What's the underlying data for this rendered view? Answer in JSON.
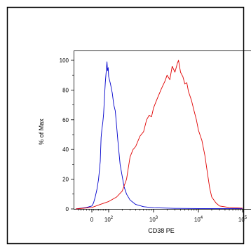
{
  "chart_data": {
    "type": "line",
    "title": "",
    "xlabel": "CD38 PE",
    "ylabel": "% of Max",
    "x_scale": "biexponential",
    "x_tick_labels": [
      {
        "value": 0,
        "base": "0",
        "exp": ""
      },
      {
        "value": 100,
        "base": "10",
        "exp": "2"
      },
      {
        "value": 1000,
        "base": "10",
        "exp": "3"
      },
      {
        "value": 10000,
        "base": "10",
        "exp": "4"
      },
      {
        "value": 100000,
        "base": "10",
        "exp": "5"
      }
    ],
    "ylim": [
      0,
      100
    ],
    "y_ticks": [
      0,
      20,
      40,
      60,
      80,
      100
    ],
    "grid": false,
    "legend": "none",
    "series": [
      {
        "color": "#0000cc",
        "points": [
          [
            -60,
            0
          ],
          [
            -20,
            1
          ],
          [
            0,
            2
          ],
          [
            10,
            4
          ],
          [
            20,
            8
          ],
          [
            30,
            13
          ],
          [
            40,
            20
          ],
          [
            50,
            32
          ],
          [
            55,
            48
          ],
          [
            60,
            54
          ],
          [
            65,
            58
          ],
          [
            70,
            64
          ],
          [
            75,
            75
          ],
          [
            80,
            85
          ],
          [
            85,
            92
          ],
          [
            90,
            99
          ],
          [
            93,
            93
          ],
          [
            97,
            95
          ],
          [
            100,
            89
          ],
          [
            110,
            84
          ],
          [
            120,
            78
          ],
          [
            130,
            70
          ],
          [
            140,
            66
          ],
          [
            150,
            56
          ],
          [
            160,
            46
          ],
          [
            170,
            38
          ],
          [
            180,
            30
          ],
          [
            200,
            22
          ],
          [
            220,
            15
          ],
          [
            250,
            10
          ],
          [
            300,
            6
          ],
          [
            400,
            3
          ],
          [
            600,
            1.5
          ],
          [
            1000,
            0.8
          ],
          [
            3000,
            0.4
          ],
          [
            10000,
            0.3
          ],
          [
            100000,
            0.2
          ]
        ]
      },
      {
        "color": "#e00000",
        "points": [
          [
            -60,
            0
          ],
          [
            0,
            1
          ],
          [
            50,
            3
          ],
          [
            100,
            5
          ],
          [
            150,
            8
          ],
          [
            200,
            12
          ],
          [
            250,
            20
          ],
          [
            300,
            35
          ],
          [
            350,
            40
          ],
          [
            400,
            42
          ],
          [
            500,
            49
          ],
          [
            600,
            52
          ],
          [
            700,
            60
          ],
          [
            800,
            63
          ],
          [
            900,
            62
          ],
          [
            1000,
            68
          ],
          [
            1200,
            74
          ],
          [
            1500,
            81
          ],
          [
            1800,
            86
          ],
          [
            2000,
            90
          ],
          [
            2300,
            87
          ],
          [
            2600,
            96
          ],
          [
            3000,
            92
          ],
          [
            3400,
            98
          ],
          [
            3600,
            100
          ],
          [
            4000,
            92
          ],
          [
            4500,
            89
          ],
          [
            5000,
            84
          ],
          [
            5500,
            85
          ],
          [
            6000,
            79
          ],
          [
            7000,
            73
          ],
          [
            8000,
            66
          ],
          [
            9000,
            60
          ],
          [
            10000,
            53
          ],
          [
            12000,
            46
          ],
          [
            14000,
            36
          ],
          [
            16000,
            24
          ],
          [
            18000,
            14
          ],
          [
            20000,
            8
          ],
          [
            25000,
            4
          ],
          [
            30000,
            2
          ],
          [
            50000,
            1
          ],
          [
            100000,
            0.5
          ]
        ]
      }
    ]
  }
}
